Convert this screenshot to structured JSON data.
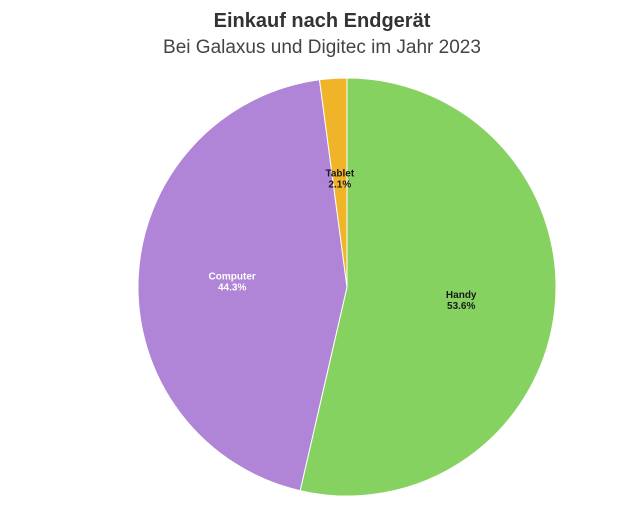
{
  "chart_data": {
    "type": "pie",
    "title": "Einkauf nach Endgerät",
    "subtitle": "Bei Galaxus und Digitec im Jahr 2023",
    "slices": [
      {
        "label": "Handy",
        "value": 53.6,
        "value_label": "53.6%",
        "color": "#86d260",
        "text_color": "#1a1a1a"
      },
      {
        "label": "Computer",
        "value": 44.3,
        "value_label": "44.3%",
        "color": "#b084d6",
        "text_color": "#ffffff"
      },
      {
        "label": "Tablet",
        "value": 2.1,
        "value_label": "2.1%",
        "color": "#f0b429",
        "text_color": "#1a1a1a"
      }
    ],
    "legend": "none"
  }
}
